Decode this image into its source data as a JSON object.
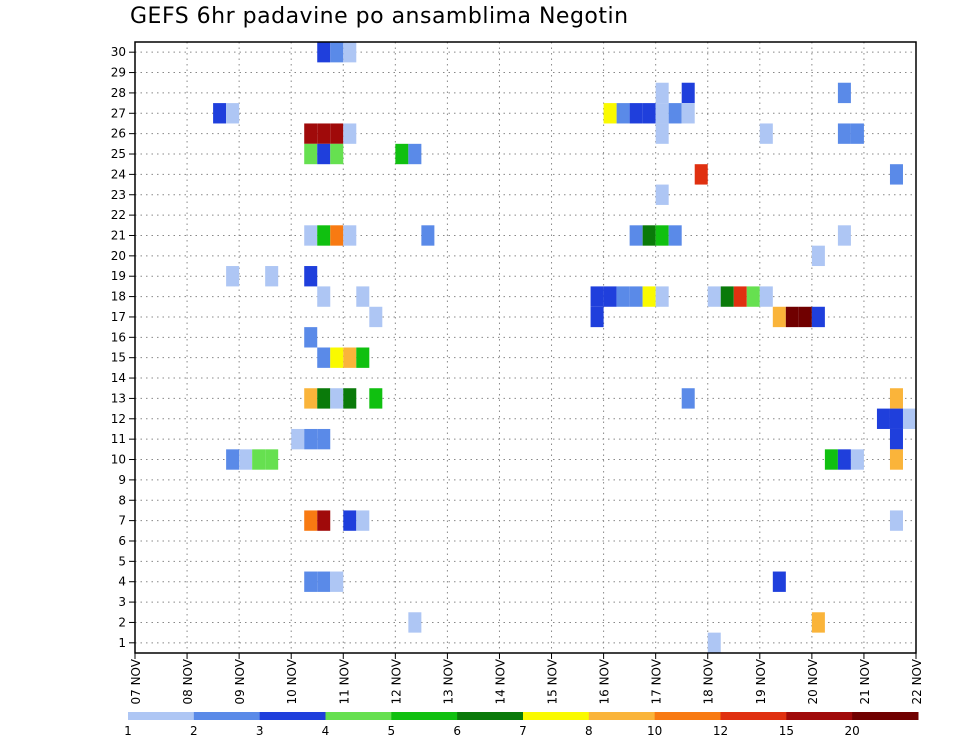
{
  "chart_data": {
    "type": "heatmap",
    "title": "GEFS 6hr padavine po ansamblima Negotin",
    "xlabel": "",
    "ylabel": "",
    "x_tick_labels": [
      "07 NOV",
      "08 NOV",
      "09 NOV",
      "10 NOV",
      "11 NOV",
      "12 NOV",
      "13 NOV",
      "14 NOV",
      "15 NOV",
      "16 NOV",
      "17 NOV",
      "18 NOV",
      "19 NOV",
      "20 NOV",
      "21 NOV",
      "22 NOV"
    ],
    "y_tick_labels": [
      "1",
      "2",
      "3",
      "4",
      "5",
      "6",
      "7",
      "8",
      "9",
      "10",
      "11",
      "12",
      "13",
      "14",
      "15",
      "16",
      "17",
      "18",
      "19",
      "20",
      "21",
      "22",
      "23",
      "24",
      "25",
      "26",
      "27",
      "28",
      "29",
      "30"
    ],
    "xlim": [
      0,
      60
    ],
    "ylim": [
      0.5,
      30.5
    ],
    "time_step_hours": 6,
    "grid": true,
    "legend_position": "bottom",
    "color_scale": {
      "labels": [
        "1",
        "2",
        "3",
        "4",
        "5",
        "6",
        "7",
        "8",
        "10",
        "12",
        "15",
        "20"
      ],
      "colors": [
        "#aec6f4",
        "#5a8ae8",
        "#1f3fdc",
        "#66e050",
        "#10c010",
        "#0a7a0a",
        "#fafa00",
        "#fab43a",
        "#f87a12",
        "#e03010",
        "#a00a0a",
        "#700000"
      ]
    },
    "cells": [
      [
        15,
        30,
        3
      ],
      [
        16,
        30,
        2
      ],
      [
        17,
        30,
        1
      ],
      [
        41,
        28,
        1
      ],
      [
        43,
        28,
        3
      ],
      [
        55,
        28,
        2
      ],
      [
        7,
        27,
        3
      ],
      [
        8,
        27,
        1
      ],
      [
        37,
        27,
        7
      ],
      [
        38,
        27,
        2
      ],
      [
        39,
        27,
        3
      ],
      [
        40,
        27,
        3
      ],
      [
        41,
        27,
        1
      ],
      [
        42,
        27,
        2
      ],
      [
        43,
        27,
        1
      ],
      [
        14,
        26,
        11
      ],
      [
        15,
        26,
        11
      ],
      [
        16,
        26,
        11
      ],
      [
        17,
        26,
        1
      ],
      [
        41,
        26,
        1
      ],
      [
        49,
        26,
        1
      ],
      [
        55,
        26,
        2
      ],
      [
        56,
        26,
        2
      ],
      [
        21,
        25,
        5
      ],
      [
        22,
        25,
        2
      ],
      [
        14,
        25,
        4
      ],
      [
        15,
        25,
        3
      ],
      [
        16,
        25,
        4
      ],
      [
        44,
        24,
        10
      ],
      [
        59,
        24,
        2
      ],
      [
        41,
        23,
        1
      ],
      [
        23,
        21,
        2
      ],
      [
        14,
        21,
        1
      ],
      [
        15,
        21,
        5
      ],
      [
        16,
        21,
        9
      ],
      [
        17,
        21,
        1
      ],
      [
        39,
        21,
        2
      ],
      [
        40,
        21,
        6
      ],
      [
        41,
        21,
        5
      ],
      [
        42,
        21,
        2
      ],
      [
        55,
        21,
        1
      ],
      [
        53,
        20,
        1
      ],
      [
        8,
        19,
        1
      ],
      [
        11,
        19,
        1
      ],
      [
        14,
        19,
        3
      ],
      [
        15,
        18,
        1
      ],
      [
        18,
        18,
        1
      ],
      [
        36,
        18,
        3
      ],
      [
        37,
        18,
        3
      ],
      [
        38,
        18,
        2
      ],
      [
        39,
        18,
        2
      ],
      [
        40,
        18,
        7
      ],
      [
        41,
        18,
        1
      ],
      [
        45,
        18,
        1
      ],
      [
        46,
        18,
        6
      ],
      [
        47,
        18,
        10
      ],
      [
        48,
        18,
        4
      ],
      [
        49,
        18,
        1
      ],
      [
        36,
        17,
        3
      ],
      [
        19,
        17,
        1
      ],
      [
        50,
        17,
        8
      ],
      [
        51,
        17,
        12
      ],
      [
        52,
        17,
        12
      ],
      [
        53,
        17,
        3
      ],
      [
        14,
        16,
        2
      ],
      [
        15,
        15,
        2
      ],
      [
        16,
        15,
        7
      ],
      [
        17,
        15,
        8
      ],
      [
        18,
        15,
        5
      ],
      [
        14,
        13,
        8
      ],
      [
        15,
        13,
        6
      ],
      [
        16,
        13,
        1
      ],
      [
        17,
        13,
        6
      ],
      [
        19,
        13,
        5
      ],
      [
        43,
        13,
        2
      ],
      [
        59,
        13,
        8
      ],
      [
        58,
        12,
        3
      ],
      [
        59,
        12,
        3
      ],
      [
        59,
        11,
        3
      ],
      [
        60,
        12,
        1
      ],
      [
        13,
        11,
        1
      ],
      [
        14,
        11,
        2
      ],
      [
        15,
        11,
        2
      ],
      [
        8,
        10,
        2
      ],
      [
        9,
        10,
        1
      ],
      [
        10,
        10,
        4
      ],
      [
        11,
        10,
        4
      ],
      [
        54,
        10,
        5
      ],
      [
        55,
        10,
        3
      ],
      [
        56,
        10,
        1
      ],
      [
        59,
        10,
        8
      ],
      [
        14,
        7,
        9
      ],
      [
        15,
        7,
        11
      ],
      [
        17,
        7,
        3
      ],
      [
        18,
        7,
        1
      ],
      [
        59,
        7,
        1
      ],
      [
        14,
        4,
        2
      ],
      [
        15,
        4,
        2
      ],
      [
        16,
        4,
        1
      ],
      [
        50,
        4,
        3
      ],
      [
        22,
        2,
        1
      ],
      [
        53,
        2,
        8
      ],
      [
        45,
        1,
        1
      ]
    ]
  }
}
